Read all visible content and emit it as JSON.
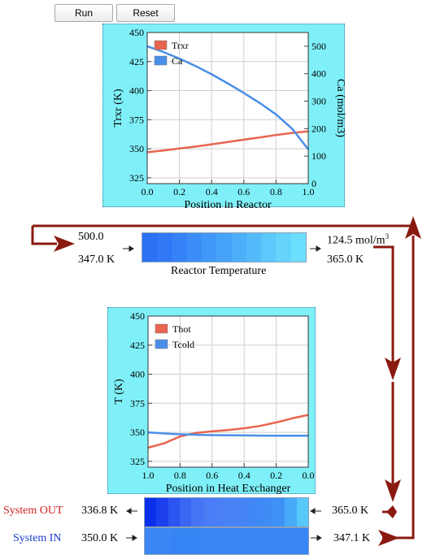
{
  "toolbar": {
    "run_label": "Run",
    "reset_label": "Reset"
  },
  "reactor_chart": {
    "chart_data": {
      "type": "line",
      "xlabel": "Position in Reactor",
      "ylabel": "Trxr (K)",
      "y2label": "Ca (mol/m3)",
      "xlim": [
        0.0,
        1.0
      ],
      "ylim": [
        320,
        450
      ],
      "y2lim": [
        0,
        550
      ],
      "x_ticks": [
        "0.0",
        "0.2",
        "0.4",
        "0.6",
        "0.8",
        "1.0"
      ],
      "y_ticks": [
        "325",
        "350",
        "375",
        "400",
        "425",
        "450"
      ],
      "y2_ticks": [
        "0",
        "100",
        "200",
        "300",
        "400",
        "500"
      ],
      "grid": true,
      "legend": "top-left",
      "series": [
        {
          "name": "Trxr",
          "axis": "left",
          "color": "#e8654f",
          "x": [
            0.0,
            0.1,
            0.2,
            0.3,
            0.4,
            0.5,
            0.6,
            0.7,
            0.8,
            0.9,
            1.0
          ],
          "y": [
            347.0,
            348.5,
            350.2,
            351.9,
            353.8,
            355.8,
            357.8,
            359.8,
            361.8,
            363.6,
            365.0
          ]
        },
        {
          "name": "Ca",
          "axis": "right",
          "color": "#4a8ee8",
          "x": [
            0.0,
            0.1,
            0.2,
            0.3,
            0.4,
            0.5,
            0.6,
            0.7,
            0.8,
            0.9,
            1.0
          ],
          "y": [
            500.0,
            479.0,
            455.0,
            428.0,
            398.0,
            365.0,
            330.0,
            293.0,
            252.0,
            200.0,
            124.5
          ]
        }
      ]
    }
  },
  "reactor": {
    "inlet_conc": "500.0",
    "inlet_temp": "347.0 K",
    "outlet_conc": "124.5 mol/m",
    "outlet_conc_sup": "3",
    "outlet_temp": "365.0 K",
    "strip_label": "Reactor Temperature",
    "strip_colors": [
      "#2c70f4",
      "#3078f5",
      "#3582f6",
      "#3a8df7",
      "#4098f8",
      "#46a3f9",
      "#4daffa",
      "#54bbfb",
      "#5cc8fc",
      "#64d4fd",
      "#6cdffe"
    ]
  },
  "hx_chart": {
    "chart_data": {
      "type": "line",
      "xlabel": "Position in Heat Exchanger",
      "ylabel": "T (K)",
      "xlim": [
        1.0,
        0.0
      ],
      "ylim": [
        320,
        450
      ],
      "x_ticks": [
        "1.0",
        "0.8",
        "0.6",
        "0.4",
        "0.2",
        "0.0"
      ],
      "y_ticks": [
        "325",
        "350",
        "375",
        "400",
        "425",
        "450"
      ],
      "grid": true,
      "legend": "top-left",
      "series": [
        {
          "name": "Thot",
          "color": "#e8654f",
          "x": [
            1.0,
            0.9,
            0.8,
            0.7,
            0.6,
            0.5,
            0.4,
            0.3,
            0.2,
            0.1,
            0.0
          ],
          "y": [
            336.8,
            340.5,
            346.5,
            349.5,
            350.8,
            352.0,
            353.5,
            355.5,
            358.5,
            362.0,
            365.0
          ]
        },
        {
          "name": "Tcold",
          "color": "#4a8ee8",
          "x": [
            1.0,
            0.9,
            0.8,
            0.7,
            0.6,
            0.5,
            0.4,
            0.3,
            0.2,
            0.1,
            0.0
          ],
          "y": [
            350.0,
            349.0,
            348.3,
            347.9,
            347.6,
            347.4,
            347.3,
            347.2,
            347.1,
            347.1,
            347.1
          ]
        }
      ]
    }
  },
  "hx": {
    "hot_in_temp": "365.0 K",
    "hot_out_temp": "336.8 K",
    "cold_in_temp": "350.0 K",
    "cold_out_temp": "347.1 K",
    "system_out_label": "System OUT",
    "system_in_label": "System IN",
    "system_out_color": "#d42020",
    "system_in_color": "#1a3ccc",
    "hot_strip_colors": [
      "#0a30ec",
      "#1c40ee",
      "#2c54f1",
      "#3a66f4",
      "#4574f5",
      "#4a7cf5",
      "#4a80f5",
      "#4882f5",
      "#4484f5",
      "#4088f5",
      "#3e8cf6",
      "#3e92f6",
      "#46aaf8",
      "#58c8fb"
    ],
    "cold_strip_colors": [
      "#3a86f4",
      "#3484f4",
      "#3a86f4",
      "#3a86f4",
      "#3a86f4",
      "#3a86f4"
    ]
  },
  "arrow_color": "#8a1a10"
}
